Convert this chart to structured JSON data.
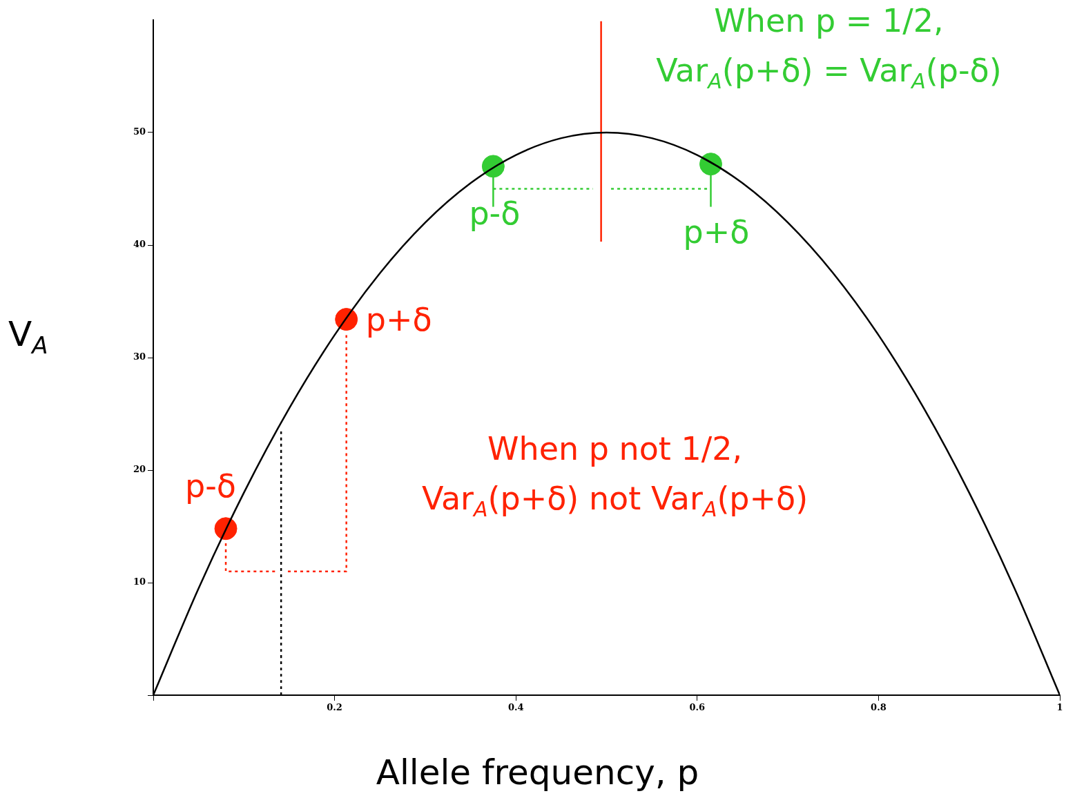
{
  "chart_data": {
    "type": "line",
    "xlabel": "Allele frequency, p",
    "ylabel": "V$_{A}$",
    "xlim": [
      0,
      1
    ],
    "ylim": [
      0,
      60
    ],
    "xticks": [
      {
        "value": 0,
        "label": null
      },
      0.2,
      0.4,
      0.6,
      0.8,
      1
    ],
    "yticks": [
      {
        "value": 0,
        "label": null
      },
      10,
      20,
      30,
      40,
      50
    ],
    "grid": false,
    "legend": false,
    "series": [
      {
        "type": "line",
        "color": "#000000",
        "marker": "none",
        "line_style": "solid",
        "x": [
          0,
          0.05,
          0.1,
          0.15,
          0.2,
          0.25,
          0.3,
          0.35,
          0.4,
          0.45,
          0.5,
          0.55,
          0.6,
          0.65,
          0.7,
          0.75,
          0.8,
          0.85,
          0.9,
          0.95,
          1
        ],
        "values": [
          0,
          9.5,
          18,
          25.5,
          32,
          37.5,
          42,
          45.5,
          48,
          49.5,
          50,
          49.5,
          48,
          45.5,
          42,
          37.5,
          32,
          25.5,
          18,
          9.5,
          0
        ]
      },
      {
        "type": "scatter",
        "color": "#ff2200",
        "marker": "circle",
        "x": [
          0.08,
          0.213
        ],
        "values": [
          14.8,
          33.4
        ],
        "value_labels": [
          "p-δ",
          "p+δ"
        ]
      },
      {
        "type": "scatter",
        "color": "#33cc33",
        "marker": "circle",
        "x": [
          0.375,
          0.615
        ],
        "values": [
          47,
          47.2
        ],
        "value_labels": [
          "p-δ",
          "p+δ"
        ]
      },
      {
        "type": "line",
        "color": "#ff2200",
        "marker": "none",
        "line_style": "solid",
        "x": [
          0.494,
          0.494
        ],
        "values": [
          40.3,
          59.9
        ]
      },
      {
        "type": "line",
        "color": "#000000",
        "marker": "none",
        "line_style": "dotted",
        "x": [
          0.141,
          0.141
        ],
        "values": [
          0,
          23.7
        ]
      },
      {
        "type": "line",
        "color": "#ff2200",
        "marker": "none",
        "line_style": "dotted",
        "x": [
          0.08,
          0.08,
          0.135
        ],
        "values": [
          13.5,
          11,
          11
        ]
      },
      {
        "type": "line",
        "color": "#ff2200",
        "marker": "none",
        "line_style": "dotted",
        "x": [
          0.213,
          0.213,
          0.148
        ],
        "values": [
          32,
          11,
          11
        ]
      },
      {
        "type": "line",
        "color": "#33cc33",
        "marker": "none",
        "line_style": "dotted",
        "x": [
          0.375,
          0.485
        ],
        "values": [
          45,
          45
        ]
      },
      {
        "type": "line",
        "color": "#33cc33",
        "marker": "none",
        "line_style": "dotted",
        "x": [
          0.505,
          0.615
        ],
        "values": [
          45,
          45
        ]
      },
      {
        "type": "line",
        "color": "#33cc33",
        "marker": "none",
        "line_style": "solid",
        "x": [
          0.375,
          0.375
        ],
        "values": [
          47,
          43.4
        ]
      },
      {
        "type": "line",
        "color": "#33cc33",
        "marker": "none",
        "line_style": "solid",
        "x": [
          0.615,
          0.615
        ],
        "values": [
          47.2,
          43.4
        ]
      }
    ],
    "annotations": [
      "When p = 1/2,\nVar$_{A}$(p+δ) = Var$_{A}$(p-δ)",
      "When p not 1/2,\nVar$_{A}$(p+δ) not Var$_{A}$(p+δ)"
    ]
  }
}
